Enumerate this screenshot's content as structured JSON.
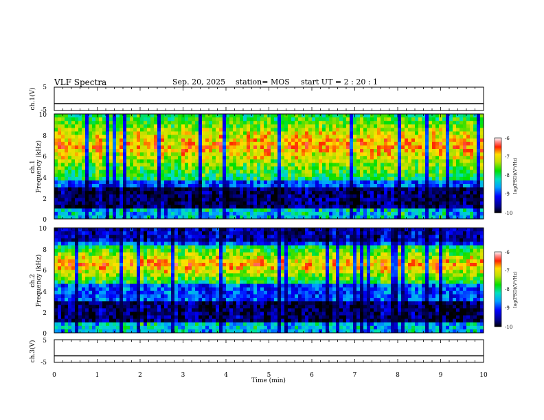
{
  "header": {
    "title": "VLF Spectra",
    "date": "Sep. 20, 2025",
    "station": "station= MOS",
    "start": "start  UT =   2 : 20 : 1"
  },
  "chart_data": {
    "type": "heatmap",
    "title": "VLF Spectra",
    "xlabel": "Time  (min)",
    "xlim": [
      0,
      10
    ],
    "x_ticks": [
      "0",
      "1",
      "2",
      "3",
      "4",
      "5",
      "6",
      "7",
      "8",
      "9",
      "10"
    ],
    "panels": [
      {
        "id": "ch1-waveform",
        "type": "line",
        "ylabel": "ch.1(V)",
        "ylim": [
          -5,
          5
        ],
        "y_ticks": [
          "5",
          "-5"
        ],
        "baseline": 0
      },
      {
        "id": "ch1-spectrogram",
        "type": "heatmap",
        "ylabel_top": "ch.1",
        "ylabel": "Frequency (kHz)",
        "ylim": [
          0,
          10
        ],
        "y_ticks": [
          "0",
          "2",
          "4",
          "6",
          "8",
          "10"
        ],
        "intense_band_khz": [
          4.5,
          9.5
        ],
        "quiet_band_khz": [
          1.0,
          3.0
        ],
        "colorbar": {
          "label": "log(PSD)(V²/Hz)",
          "range": [
            -10,
            -6
          ],
          "ticks": [
            "-6",
            "-7",
            "-8",
            "-9",
            "-10"
          ]
        }
      },
      {
        "id": "ch2-spectrogram",
        "type": "heatmap",
        "ylabel_top": "ch.2",
        "ylabel": "Frequency (kHz)",
        "ylim": [
          0,
          10
        ],
        "y_ticks": [
          "0",
          "2",
          "4",
          "6",
          "8",
          "10"
        ],
        "intense_band_khz": [
          5.5,
          7.5
        ],
        "quiet_band_khz": [
          1.0,
          3.0
        ],
        "colorbar": {
          "label": "log(PSD)(V²/Hz)",
          "range": [
            -10,
            -6
          ],
          "ticks": [
            "-6",
            "-7",
            "-8",
            "-9",
            "-10"
          ]
        }
      },
      {
        "id": "ch3-waveform",
        "type": "line",
        "ylabel": "ch.3(V)",
        "ylim": [
          -5,
          5
        ],
        "y_ticks": [
          "5",
          "-5"
        ],
        "baseline": 0
      }
    ]
  }
}
